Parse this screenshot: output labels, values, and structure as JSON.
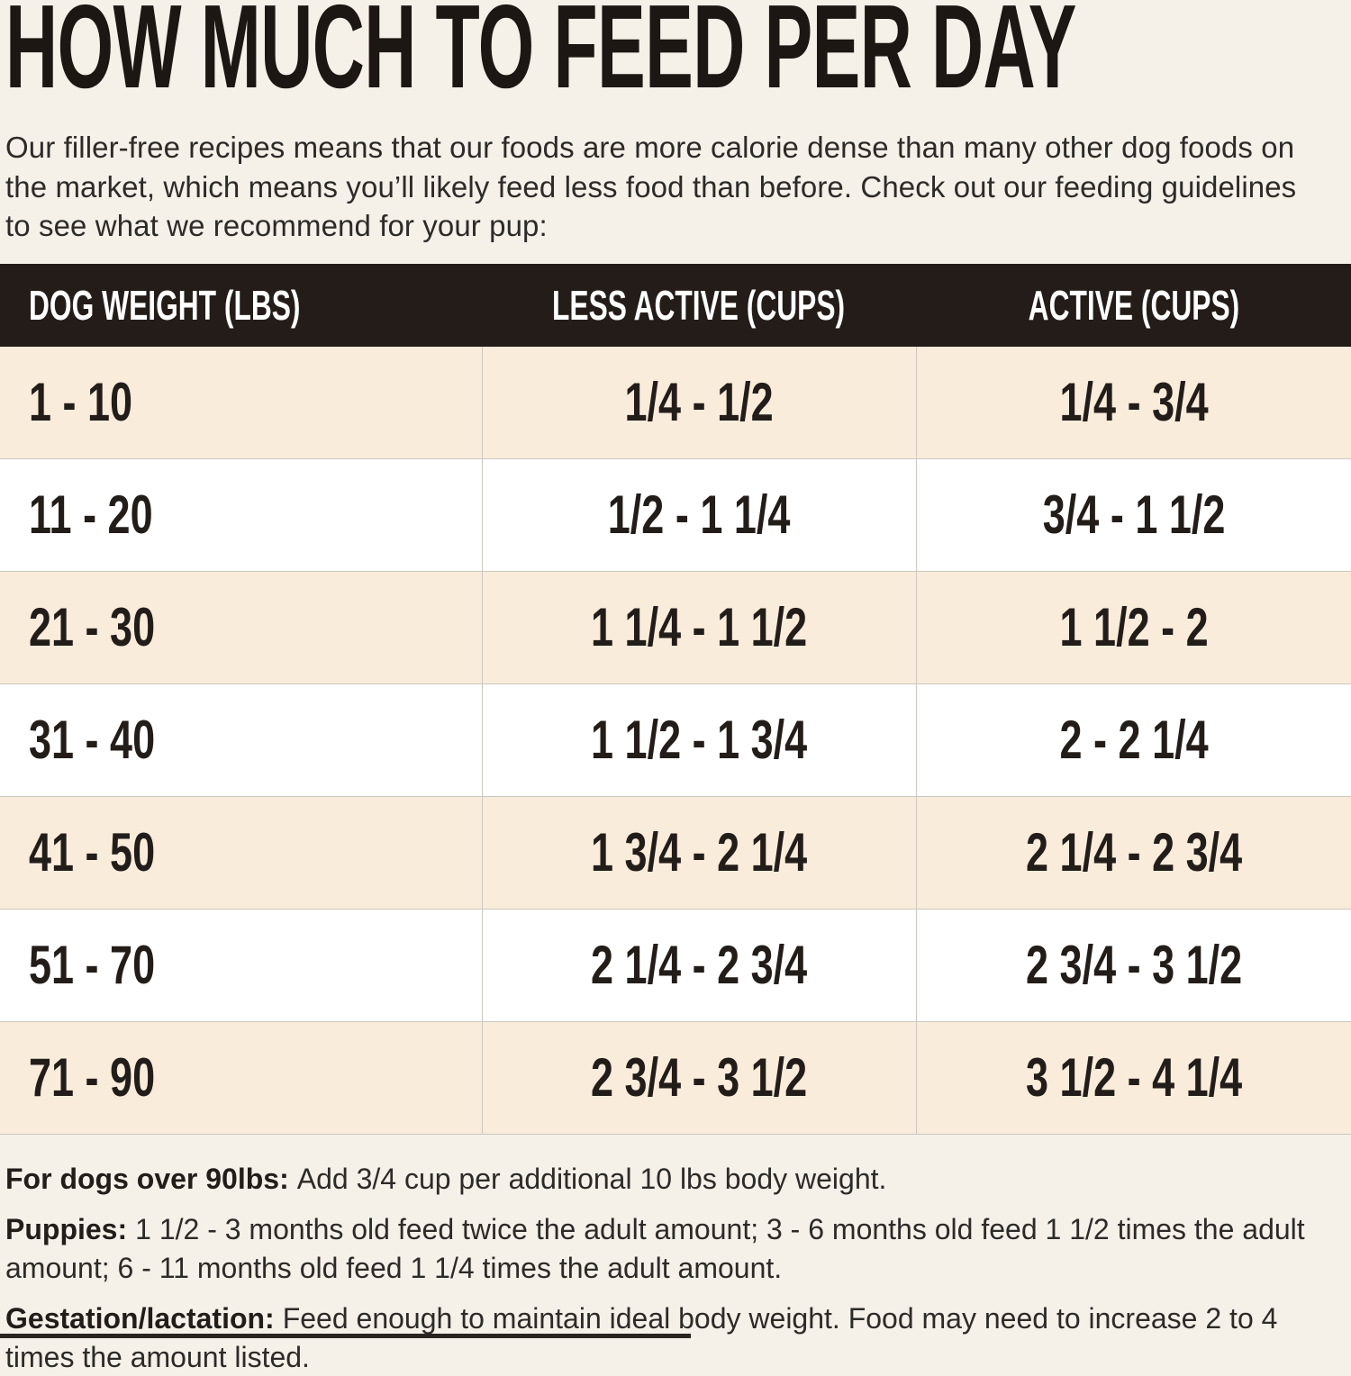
{
  "page": {
    "title": "HOW MUCH TO FEED PER DAY",
    "intro": "Our filler-free recipes means that our foods are more calorie dense than many other dog foods on the market, which means you’ll likely feed less food than before. Check out our feeding guidelines to see what we recommend for your pup:"
  },
  "table": {
    "headers": [
      "DOG WEIGHT (LBS)",
      "LESS ACTIVE (CUPS)",
      "ACTIVE (CUPS)"
    ],
    "rows": [
      {
        "weight": "1 - 10",
        "less_active": "1/4 - 1/2",
        "active": "1/4 - 3/4"
      },
      {
        "weight": "11 - 20",
        "less_active": "1/2 - 1 1/4",
        "active": "3/4 - 1 1/2"
      },
      {
        "weight": "21 - 30",
        "less_active": "1 1/4 - 1 1/2",
        "active": "1 1/2 - 2"
      },
      {
        "weight": "31 - 40",
        "less_active": "1 1/2 - 1 3/4",
        "active": "2 - 2 1/4"
      },
      {
        "weight": "41 - 50",
        "less_active": "1 3/4 - 2 1/4",
        "active": "2 1/4 - 2 3/4"
      },
      {
        "weight": "51 - 70",
        "less_active": "2 1/4 - 2 3/4",
        "active": "2 3/4 - 3 1/2"
      },
      {
        "weight": "71 - 90",
        "less_active": "2 3/4 - 3 1/2",
        "active": "3 1/2 - 4 1/4"
      }
    ]
  },
  "notes": [
    {
      "label": "For dogs over 90lbs:",
      "text": "Add 3/4 cup per additional 10 lbs body weight."
    },
    {
      "label": "Puppies:",
      "text": "1 1/2 - 3 months old feed twice the adult amount; 3 - 6 months old feed 1 1/2 times the adult amount; 6 - 11 months old feed 1 1/4 times the adult amount."
    },
    {
      "label": "Gestation/lactation:",
      "text": "Feed enough to maintain ideal body weight. Food may need to increase 2 to 4 times the amount listed."
    }
  ],
  "colors": {
    "page_bg": "#f5f0e8",
    "header_bg": "#241c18",
    "header_text": "#ffffff",
    "row_cream": "#f9ecdb",
    "row_white": "#ffffff",
    "grid_line": "#ccc7c0",
    "table_text": "#231d1a",
    "body_text": "#2e2a28"
  }
}
